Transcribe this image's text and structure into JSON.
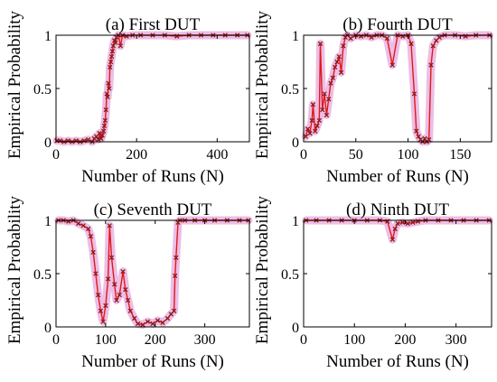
{
  "figure": {
    "marker_color": "#8b1a1a",
    "halo_color": "#e6a8dc",
    "line_color": "#e0181c"
  },
  "chart_data": [
    {
      "type": "scatter",
      "title": "(a) First DUT",
      "xlabel": "Number of Runs (N)",
      "ylabel": "Empirical Probability",
      "xlim": [
        0,
        480
      ],
      "ylim": [
        0,
        1
      ],
      "xticks": [
        "0",
        "200",
        "400"
      ],
      "yticks": [
        "0",
        "0.5",
        "1"
      ],
      "points": [
        [
          2,
          0.01
        ],
        [
          10,
          0.01
        ],
        [
          20,
          0.0
        ],
        [
          30,
          0.01
        ],
        [
          40,
          0.0
        ],
        [
          50,
          0.01
        ],
        [
          60,
          0.0
        ],
        [
          70,
          0.01
        ],
        [
          80,
          0.02
        ],
        [
          90,
          0.0
        ],
        [
          95,
          0.03
        ],
        [
          100,
          0.05
        ],
        [
          105,
          0.02
        ],
        [
          108,
          0.08
        ],
        [
          112,
          0.03
        ],
        [
          115,
          0.06
        ],
        [
          118,
          0.1
        ],
        [
          120,
          0.15
        ],
        [
          122,
          0.2
        ],
        [
          124,
          0.3
        ],
        [
          126,
          0.45
        ],
        [
          128,
          0.42
        ],
        [
          130,
          0.55
        ],
        [
          132,
          0.5
        ],
        [
          134,
          0.7
        ],
        [
          136,
          0.75
        ],
        [
          138,
          0.8
        ],
        [
          140,
          0.85
        ],
        [
          142,
          0.9
        ],
        [
          145,
          0.95
        ],
        [
          148,
          0.93
        ],
        [
          150,
          0.98
        ],
        [
          155,
          1.0
        ],
        [
          160,
          0.9
        ],
        [
          165,
          1.0
        ],
        [
          175,
          0.99
        ],
        [
          190,
          1.0
        ],
        [
          210,
          1.0
        ],
        [
          240,
          1.0
        ],
        [
          270,
          1.0
        ],
        [
          300,
          0.99
        ],
        [
          330,
          1.0
        ],
        [
          360,
          1.0
        ],
        [
          390,
          1.0
        ],
        [
          420,
          1.0
        ],
        [
          450,
          1.0
        ],
        [
          475,
          1.0
        ]
      ]
    },
    {
      "type": "scatter",
      "title": "(b) Fourth DUT",
      "xlabel": "Number of Runs (N)",
      "ylabel": "Empirical Probability",
      "xlim": [
        0,
        180
      ],
      "ylim": [
        0,
        1
      ],
      "xticks": [
        "0",
        "50",
        "100",
        "150"
      ],
      "yticks": [
        "0",
        "0.5",
        "1"
      ],
      "points": [
        [
          2,
          0.05
        ],
        [
          4,
          0.12
        ],
        [
          6,
          0.08
        ],
        [
          8,
          0.2
        ],
        [
          9,
          0.35
        ],
        [
          11,
          0.1
        ],
        [
          13,
          0.15
        ],
        [
          15,
          0.2
        ],
        [
          16,
          0.92
        ],
        [
          18,
          0.3
        ],
        [
          20,
          0.45
        ],
        [
          22,
          0.25
        ],
        [
          24,
          0.4
        ],
        [
          26,
          0.55
        ],
        [
          28,
          0.6
        ],
        [
          30,
          0.7
        ],
        [
          32,
          0.75
        ],
        [
          34,
          0.8
        ],
        [
          36,
          0.65
        ],
        [
          38,
          0.9
        ],
        [
          40,
          0.98
        ],
        [
          42,
          1.0
        ],
        [
          45,
          0.97
        ],
        [
          50,
          1.0
        ],
        [
          55,
          0.99
        ],
        [
          60,
          1.0
        ],
        [
          65,
          0.98
        ],
        [
          70,
          1.0
        ],
        [
          75,
          1.0
        ],
        [
          80,
          0.97
        ],
        [
          85,
          0.72
        ],
        [
          90,
          1.0
        ],
        [
          95,
          0.99
        ],
        [
          100,
          1.0
        ],
        [
          103,
          0.92
        ],
        [
          106,
          0.45
        ],
        [
          108,
          0.1
        ],
        [
          110,
          0.05
        ],
        [
          112,
          0.02
        ],
        [
          114,
          0.0
        ],
        [
          116,
          0.03
        ],
        [
          118,
          0.0
        ],
        [
          120,
          0.02
        ],
        [
          122,
          0.72
        ],
        [
          124,
          0.9
        ],
        [
          127,
          0.95
        ],
        [
          130,
          0.98
        ],
        [
          135,
          1.0
        ],
        [
          145,
          1.0
        ],
        [
          155,
          0.99
        ],
        [
          165,
          1.0
        ],
        [
          178,
          1.0
        ]
      ]
    },
    {
      "type": "scatter",
      "title": "(c) Seventh DUT",
      "xlabel": "Number of Runs (N)",
      "ylabel": "Empirical Probability",
      "xlim": [
        0,
        390
      ],
      "ylim": [
        0,
        1
      ],
      "xticks": [
        "0",
        "100",
        "200",
        "300"
      ],
      "yticks": [
        "0",
        "0.5",
        "1"
      ],
      "points": [
        [
          5,
          1.0
        ],
        [
          15,
          1.0
        ],
        [
          25,
          0.99
        ],
        [
          35,
          1.0
        ],
        [
          45,
          0.97
        ],
        [
          55,
          0.95
        ],
        [
          65,
          0.92
        ],
        [
          70,
          0.85
        ],
        [
          75,
          0.7
        ],
        [
          80,
          0.5
        ],
        [
          85,
          0.3
        ],
        [
          90,
          0.15
        ],
        [
          95,
          0.05
        ],
        [
          100,
          0.2
        ],
        [
          105,
          0.45
        ],
        [
          108,
          0.95
        ],
        [
          112,
          0.65
        ],
        [
          118,
          0.4
        ],
        [
          122,
          0.25
        ],
        [
          128,
          0.3
        ],
        [
          135,
          0.52
        ],
        [
          140,
          0.35
        ],
        [
          145,
          0.25
        ],
        [
          150,
          0.15
        ],
        [
          158,
          0.08
        ],
        [
          165,
          0.03
        ],
        [
          175,
          0.02
        ],
        [
          185,
          0.05
        ],
        [
          195,
          0.03
        ],
        [
          205,
          0.06
        ],
        [
          215,
          0.04
        ],
        [
          225,
          0.08
        ],
        [
          232,
          0.12
        ],
        [
          238,
          0.15
        ],
        [
          240,
          0.48
        ],
        [
          242,
          0.65
        ],
        [
          246,
          0.98
        ],
        [
          250,
          1.0
        ],
        [
          260,
          1.0
        ],
        [
          280,
          1.0
        ],
        [
          300,
          1.0
        ],
        [
          320,
          1.0
        ],
        [
          345,
          1.0
        ],
        [
          370,
          1.0
        ],
        [
          388,
          1.0
        ]
      ]
    },
    {
      "type": "scatter",
      "title": "(d) Ninth DUT",
      "xlabel": "Number of Runs (N)",
      "ylabel": "Empirical Probability",
      "xlim": [
        0,
        370
      ],
      "ylim": [
        0,
        1
      ],
      "xticks": [
        "0",
        "100",
        "200",
        "300"
      ],
      "yticks": [
        "0",
        "0.5",
        "1"
      ],
      "points": [
        [
          5,
          1.0
        ],
        [
          25,
          1.0
        ],
        [
          50,
          1.0
        ],
        [
          75,
          1.0
        ],
        [
          100,
          1.0
        ],
        [
          125,
          1.0
        ],
        [
          150,
          1.0
        ],
        [
          165,
          0.99
        ],
        [
          175,
          0.82
        ],
        [
          180,
          0.92
        ],
        [
          185,
          0.97
        ],
        [
          195,
          0.98
        ],
        [
          205,
          0.97
        ],
        [
          215,
          0.98
        ],
        [
          225,
          0.99
        ],
        [
          240,
          1.0
        ],
        [
          265,
          1.0
        ],
        [
          290,
          1.0
        ],
        [
          315,
          1.0
        ],
        [
          340,
          1.0
        ],
        [
          365,
          1.0
        ]
      ]
    }
  ]
}
